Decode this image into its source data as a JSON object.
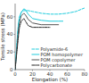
{
  "chart_data": {
    "type": "line",
    "title": "",
    "xlabel": "Elongation (%)",
    "ylabel": "Tensile stress (MPa)",
    "xlim": [
      0,
      80
    ],
    "ylim": [
      0,
      75
    ],
    "xticks": [
      0,
      20,
      40,
      60,
      80
    ],
    "yticks": [
      0,
      20,
      40,
      60
    ],
    "grid": false,
    "legend": "lower right",
    "series": [
      {
        "name": "Polyamide-6",
        "color": "#22ccdd",
        "line_style": "dashed",
        "x": [
          0,
          1,
          2,
          3,
          4,
          5,
          7,
          10,
          15,
          20,
          30,
          40,
          50,
          60,
          70,
          80
        ],
        "values": [
          0,
          15,
          30,
          44,
          54,
          60,
          65,
          67,
          67,
          66,
          64,
          63,
          63,
          64,
          66,
          70
        ]
      },
      {
        "name": "POM homopolymer",
        "color": "#22ccdd",
        "line_style": "solid",
        "x": [
          0,
          1,
          2,
          3,
          4,
          5,
          7,
          10,
          12,
          15,
          20,
          30,
          40,
          50,
          55
        ],
        "values": [
          0,
          14,
          27,
          40,
          51,
          58,
          65,
          69,
          68,
          63,
          58,
          56,
          55,
          55,
          55
        ]
      },
      {
        "name": "POM copolymer",
        "color": "#555555",
        "line_style": "solid",
        "x": [
          0,
          1,
          2,
          3,
          4,
          5,
          7,
          10,
          12,
          15,
          20,
          30,
          40,
          50
        ],
        "values": [
          0,
          12,
          24,
          36,
          47,
          54,
          61,
          64,
          62,
          57,
          53,
          51,
          51,
          51
        ]
      },
      {
        "name": "Polycarbonate",
        "color": "#222222",
        "line_style": "dashdot",
        "x": [
          0,
          1,
          2,
          3,
          4,
          5,
          7,
          10,
          12,
          15,
          20,
          30,
          40
        ],
        "values": [
          0,
          10,
          20,
          30,
          40,
          48,
          55,
          58,
          55,
          50,
          48,
          48,
          48
        ]
      }
    ]
  }
}
